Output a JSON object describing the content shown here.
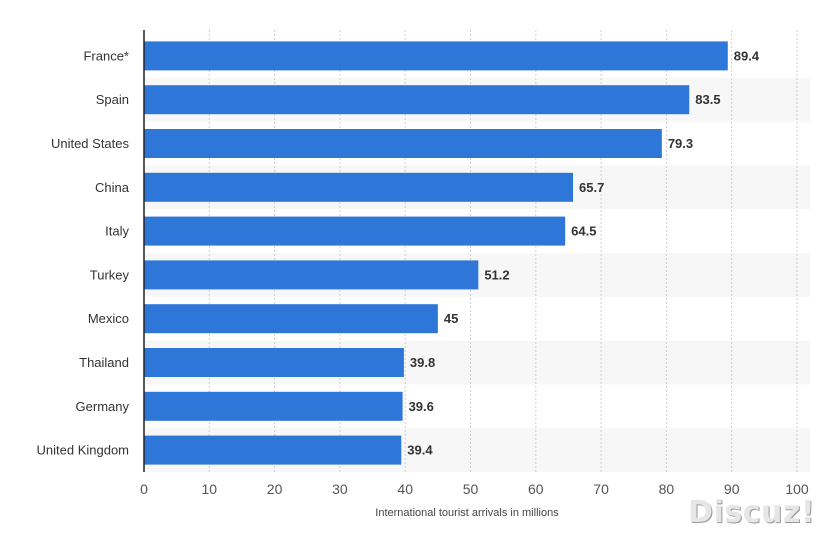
{
  "chart_data": {
    "type": "bar",
    "orientation": "horizontal",
    "categories": [
      "France*",
      "Spain",
      "United States",
      "China",
      "Italy",
      "Turkey",
      "Mexico",
      "Thailand",
      "Germany",
      "United Kingdom"
    ],
    "values": [
      89.4,
      83.5,
      79.3,
      65.7,
      64.5,
      51.2,
      45,
      39.8,
      39.6,
      39.4
    ],
    "value_labels": [
      "89.4",
      "83.5",
      "79.3",
      "65.7",
      "64.5",
      "51.2",
      "45",
      "39.8",
      "39.6",
      "39.4"
    ],
    "xlabel": "International tourist arrivals in millions",
    "ylabel": "",
    "xlim": [
      0,
      100
    ],
    "xticks": [
      "0",
      "10",
      "20",
      "30",
      "40",
      "50",
      "60",
      "70",
      "80",
      "90",
      "100"
    ],
    "grid": "vertical dashed",
    "bar_color": "#2f76d9"
  },
  "watermark": "Discuz!"
}
